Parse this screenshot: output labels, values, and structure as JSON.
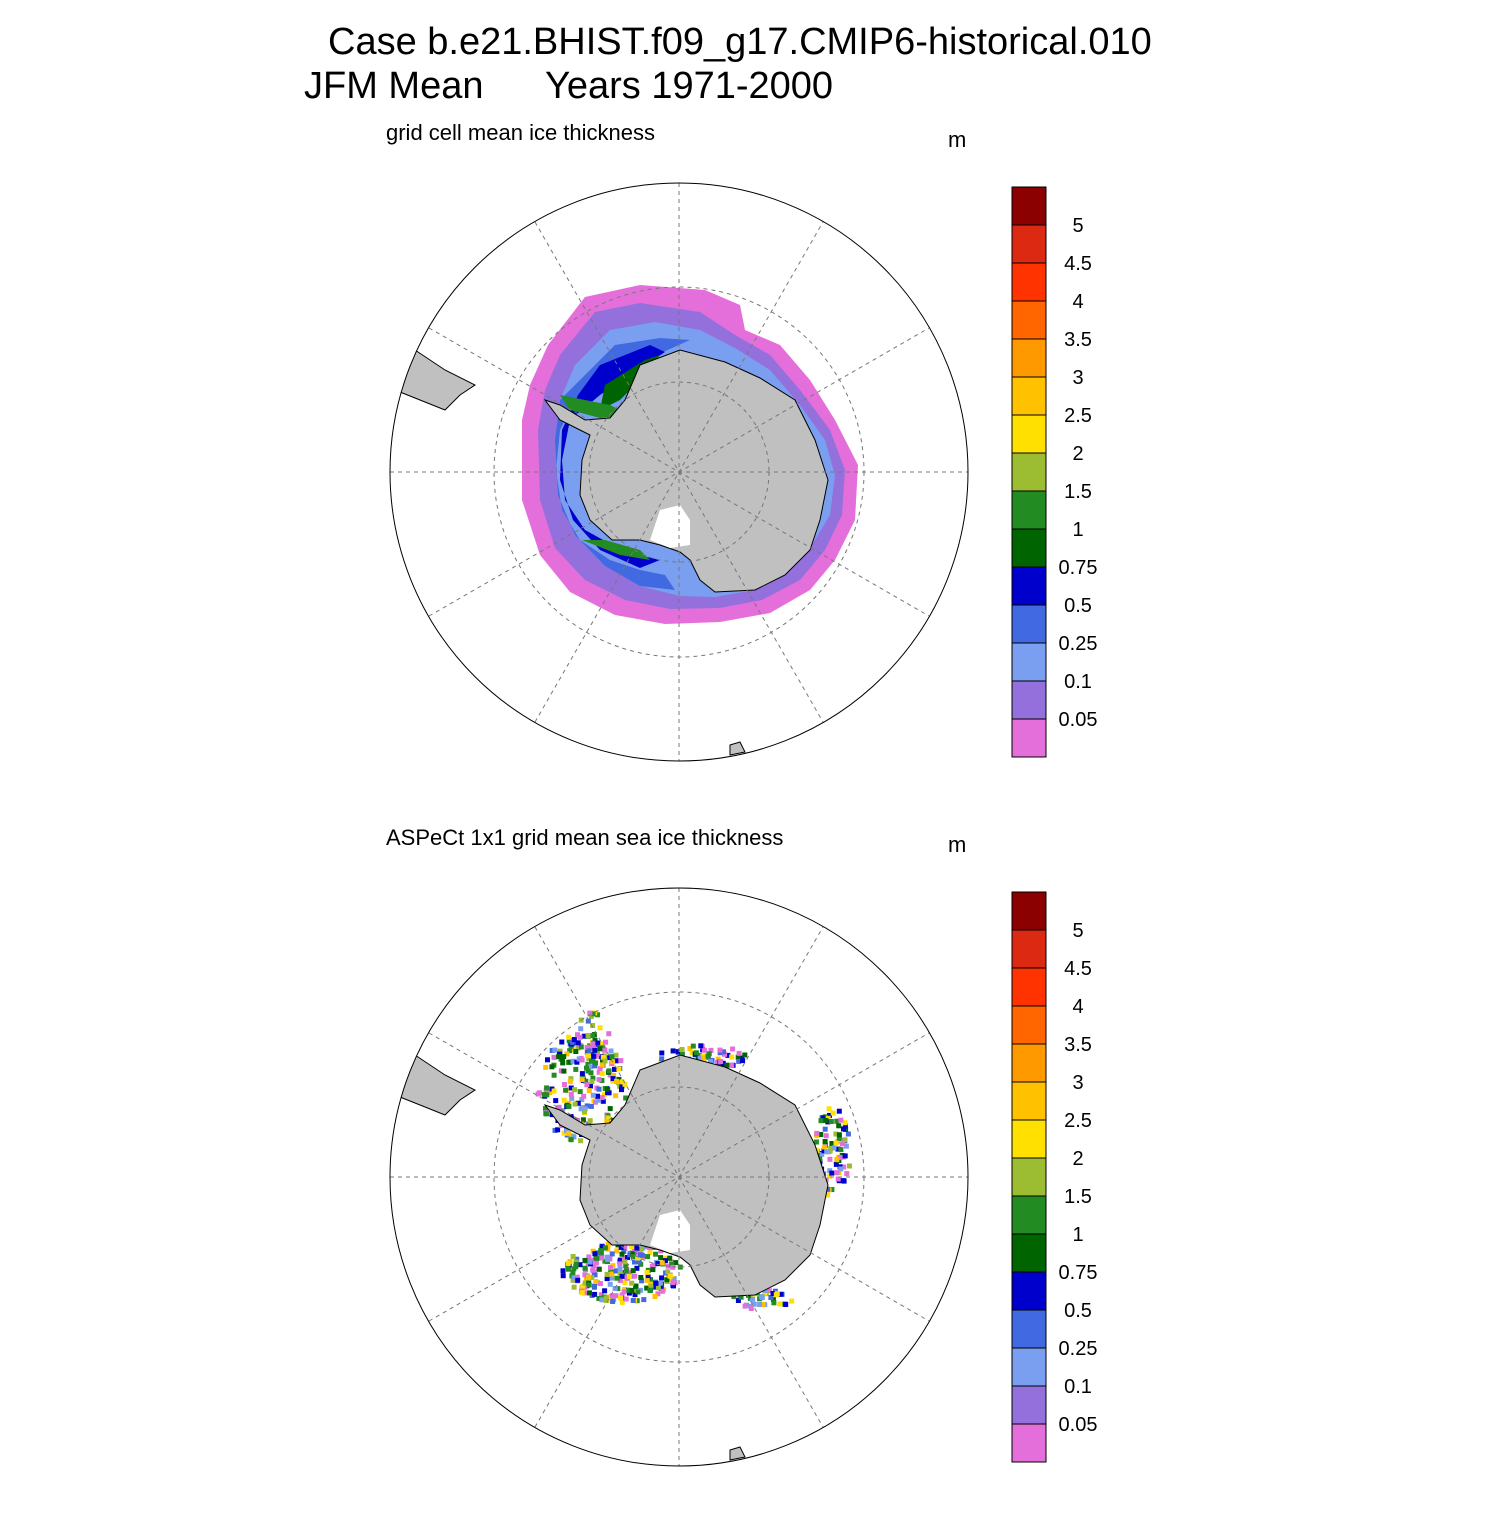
{
  "title": {
    "line1": "Case b.e21.BHIST.f09_g17.CMIP6-historical.010",
    "season": "JFM Mean",
    "years": "Years 1971-2000"
  },
  "colorbar": {
    "labels": [
      "5",
      "4.5",
      "4",
      "3.5",
      "3",
      "2.5",
      "2",
      "1.5",
      "1",
      "0.75",
      "0.5",
      "0.25",
      "0.1",
      "0.05"
    ],
    "colors": [
      "#8b0000",
      "#dc2a12",
      "#ff3300",
      "#ff6600",
      "#ff9900",
      "#ffc100",
      "#ffe000",
      "#9cbd32",
      "#228b22",
      "#006400",
      "#0000cd",
      "#4169e1",
      "#7b9ff0",
      "#9370db",
      "#e46fdb"
    ]
  },
  "land_color": "#c0c0c0",
  "panels": [
    {
      "id": "model",
      "subtitle": "grid cell mean ice thickness",
      "units": "m"
    },
    {
      "id": "obs",
      "subtitle": "ASPeCt 1x1 grid mean sea ice thickness",
      "units": "m"
    }
  ]
}
